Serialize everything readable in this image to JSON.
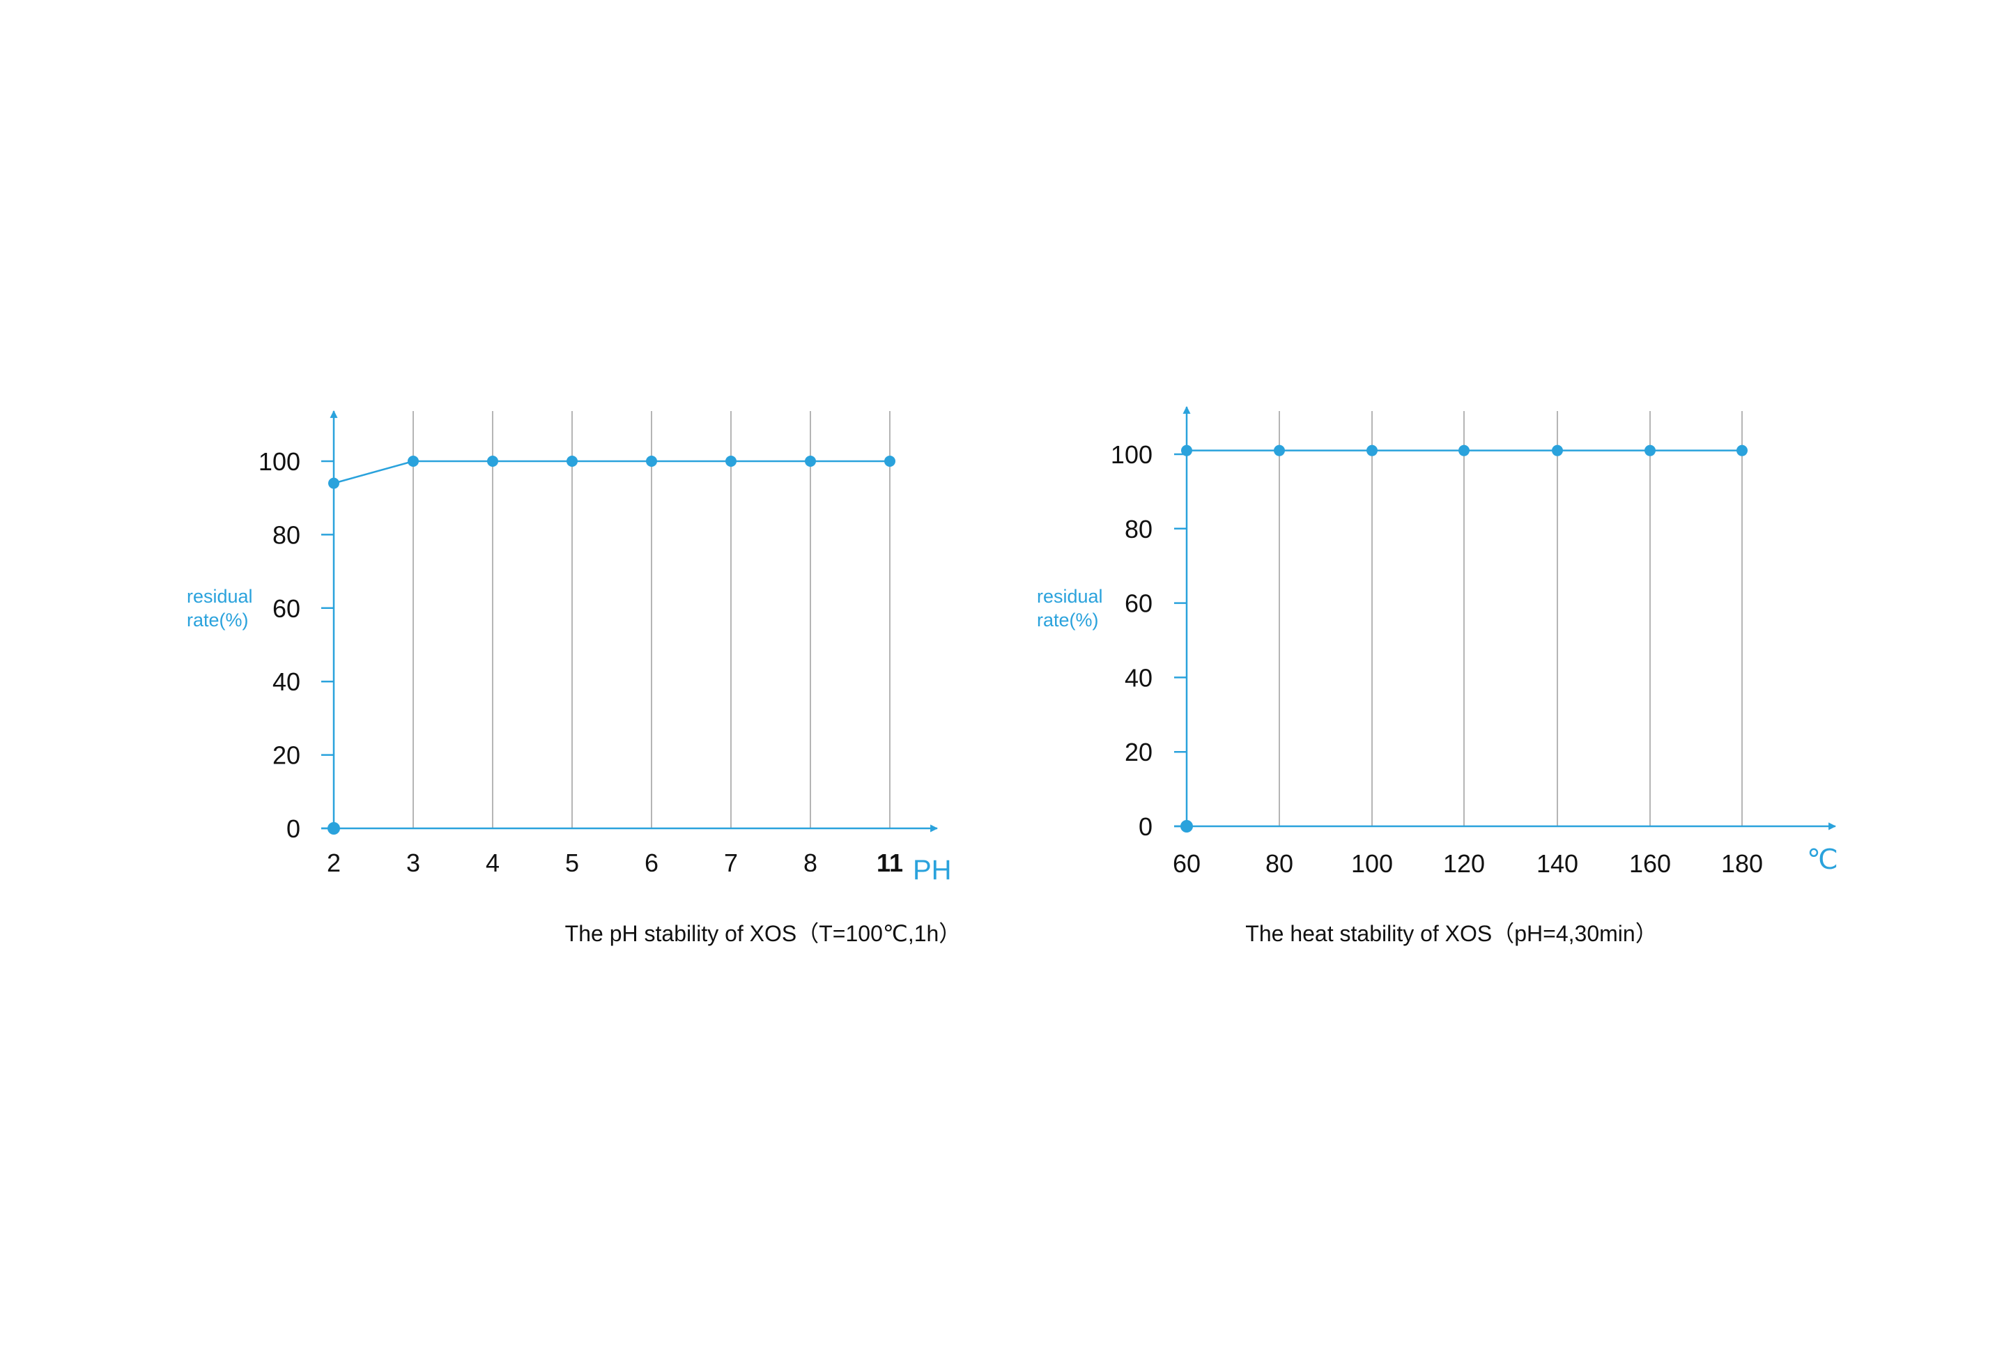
{
  "colors": {
    "accent": "#2aa2dc",
    "grid": "#b5b5b5",
    "text": "#111111",
    "background": "#ffffff"
  },
  "chart_data": [
    {
      "type": "line",
      "title": "The pH stability of XOS（T=100℃,1h）",
      "xlabel": "PH",
      "ylabel": "residual rate(%)",
      "categories": [
        "2",
        "3",
        "4",
        "5",
        "6",
        "7",
        "8",
        "11"
      ],
      "series": [
        {
          "values": [
            94,
            100,
            100,
            100,
            100,
            100,
            100,
            100
          ]
        }
      ],
      "origin_point": {
        "x": "2",
        "y": 0
      },
      "yticks": [
        0,
        20,
        40,
        60,
        80,
        100
      ],
      "ylim": [
        0,
        110
      ],
      "grid": "vertical",
      "bold_ticks": [
        "11"
      ]
    },
    {
      "type": "line",
      "title": "The heat stability of XOS（pH=4,30min）",
      "xlabel": "℃",
      "ylabel": "residual rate(%)",
      "categories": [
        "60",
        "80",
        "100",
        "120",
        "140",
        "160",
        "180"
      ],
      "series": [
        {
          "values": [
            101,
            101,
            101,
            101,
            101,
            101,
            101
          ]
        }
      ],
      "origin_point": {
        "x": "60",
        "y": 0
      },
      "yticks": [
        0,
        20,
        40,
        60,
        80,
        100
      ],
      "ylim": [
        0,
        110
      ],
      "grid": "vertical",
      "bold_ticks": []
    }
  ]
}
